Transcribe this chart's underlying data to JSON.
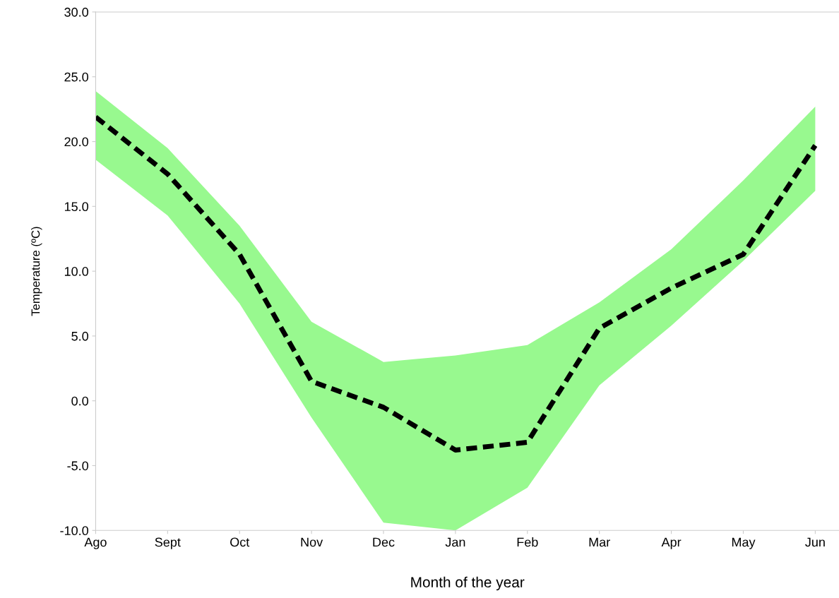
{
  "chart_data": {
    "type": "line",
    "xlabel": "Month of the year",
    "ylabel": "Temperature (ºC)",
    "categories": [
      "Ago",
      "Sept",
      "Oct",
      "Nov",
      "Dec",
      "Jan",
      "Feb",
      "Mar",
      "Apr",
      "May",
      "Jun"
    ],
    "series": [
      {
        "color": "#000000",
        "values": [
          21.9,
          17.5,
          11.3,
          1.5,
          -0.5,
          -3.8,
          -3.2,
          5.6,
          8.7,
          11.3,
          19.7
        ],
        "lower": [
          18.6,
          14.3,
          7.5,
          -1.3,
          -9.4,
          -10.0,
          -6.7,
          1.2,
          5.8,
          10.8,
          16.2
        ],
        "upper": [
          23.9,
          19.5,
          13.5,
          6.1,
          3.0,
          3.5,
          4.3,
          7.6,
          11.7,
          17.0,
          22.7
        ]
      }
    ],
    "ylim": [
      -10,
      30
    ],
    "yticks": [
      {
        "value": -10,
        "label": "-10.0"
      },
      {
        "value": -5,
        "label": "-5.0"
      },
      {
        "value": 0,
        "label": "0.0"
      },
      {
        "value": 5,
        "label": "5.0"
      },
      {
        "value": 10,
        "label": "10.0"
      },
      {
        "value": 15,
        "label": "15.0"
      },
      {
        "value": 20,
        "label": "20.0"
      },
      {
        "value": 25,
        "label": "25.0"
      },
      {
        "value": 30,
        "label": "30.0"
      }
    ],
    "line_style": "dashed",
    "marker": "none",
    "grid": false
  }
}
